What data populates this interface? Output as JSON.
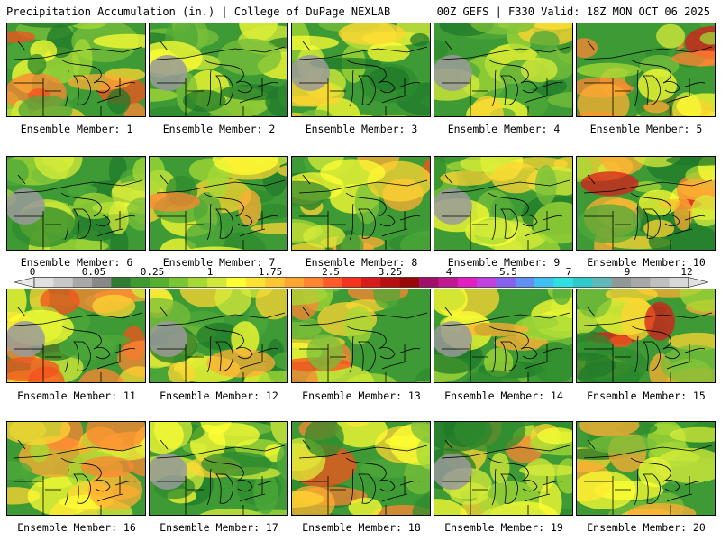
{
  "header": {
    "title": "Precipitation Accumulation (in.) | College of DuPage NEXLAB",
    "run_info": "00Z GEFS | F330 Valid: 18Z MON OCT 06 2025"
  },
  "members": [
    {
      "label": "Ensemble Member: 1",
      "wetness": 0.55
    },
    {
      "label": "Ensemble Member: 2",
      "wetness": 0.25
    },
    {
      "label": "Ensemble Member: 3",
      "wetness": 0.35
    },
    {
      "label": "Ensemble Member: 4",
      "wetness": 0.35
    },
    {
      "label": "Ensemble Member: 5",
      "wetness": 0.6
    },
    {
      "label": "Ensemble Member: 6",
      "wetness": 0.25
    },
    {
      "label": "Ensemble Member: 7",
      "wetness": 0.45
    },
    {
      "label": "Ensemble Member: 8",
      "wetness": 0.55
    },
    {
      "label": "Ensemble Member: 9",
      "wetness": 0.35
    },
    {
      "label": "Ensemble Member: 10",
      "wetness": 0.65
    },
    {
      "label": "Ensemble Member: 11",
      "wetness": 0.7
    },
    {
      "label": "Ensemble Member: 12",
      "wetness": 0.35
    },
    {
      "label": "Ensemble Member: 13",
      "wetness": 0.55
    },
    {
      "label": "Ensemble Member: 14",
      "wetness": 0.45
    },
    {
      "label": "Ensemble Member: 15",
      "wetness": 0.65
    },
    {
      "label": "Ensemble Member: 16",
      "wetness": 0.5
    },
    {
      "label": "Ensemble Member: 17",
      "wetness": 0.35
    },
    {
      "label": "Ensemble Member: 18",
      "wetness": 0.55
    },
    {
      "label": "Ensemble Member: 19",
      "wetness": 0.5
    },
    {
      "label": "Ensemble Member: 20",
      "wetness": 0.5
    }
  ],
  "colorbar": {
    "labels": [
      "0",
      "0.05",
      "0.25",
      "1",
      "1.75",
      "2.5",
      "3.25",
      "4",
      "5.5",
      "7",
      "9",
      "12"
    ],
    "colors": [
      "#e0e0e0",
      "#c8c8c8",
      "#a8a8a8",
      "#888888",
      "#2e7d32",
      "#3f9a2f",
      "#56b030",
      "#7ac534",
      "#a6d936",
      "#d2e83a",
      "#ffff33",
      "#ffe233",
      "#ffc533",
      "#ffa533",
      "#ff8533",
      "#ff5a2a",
      "#f5321e",
      "#d81c1c",
      "#b80f10",
      "#980808",
      "#a0106a",
      "#c01890",
      "#e020c0",
      "#c040e0",
      "#8860f0",
      "#6090f0",
      "#40c0f0",
      "#30e0e0",
      "#30c8c8",
      "#60b8b8",
      "#909898",
      "#a8a8a8",
      "#c0c0c0",
      "#d8d8d8"
    ]
  }
}
